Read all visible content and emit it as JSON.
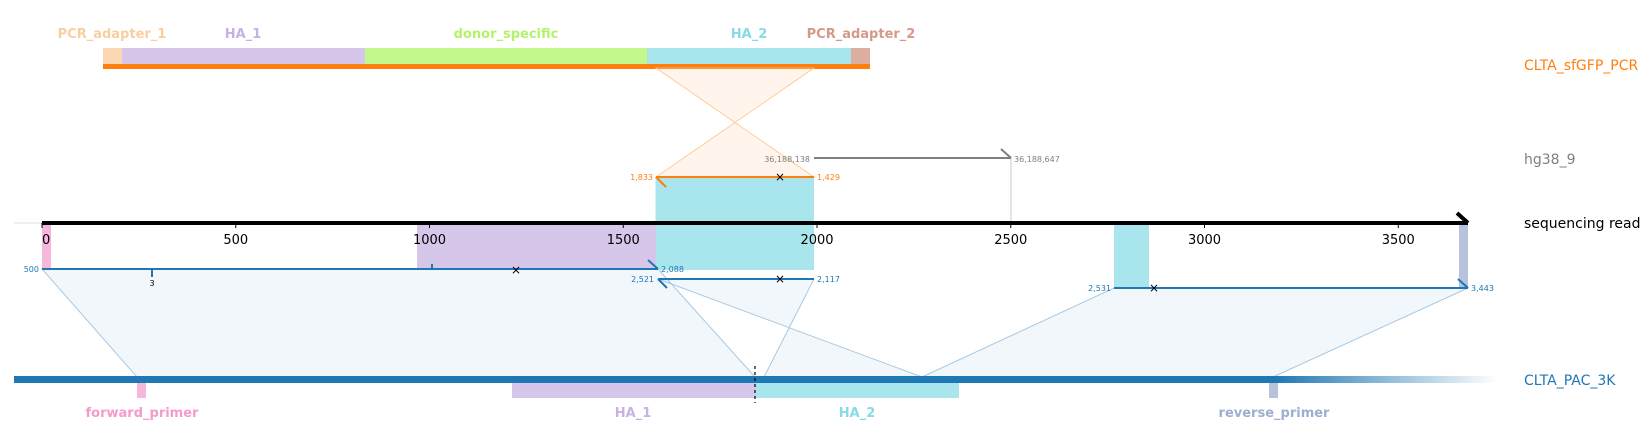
{
  "colors": {
    "pcr_adapter_1": "#fbd7b4",
    "ha_1": "#d6c6ea",
    "donor_specific": "#c3f98a",
    "ha_2": "#a9e5ec",
    "pcr_adapter_2": "#dcaea0",
    "forward_primer": "#f7b7db",
    "reverse_primer": "#b7c2dd",
    "orange": "#ff7f0e",
    "blue": "#1f77b4",
    "gray": "#7f7f7f",
    "black": "#000000"
  },
  "tracks": {
    "pcr": "CLTA_sfGFP_PCR",
    "genome": "hg38_9",
    "read": "sequencing read",
    "pac": "CLTA_PAC_3K"
  },
  "pcr_features": [
    {
      "name": "PCR_adapter_1",
      "color": "#fbd7b4",
      "label_color": "#f9cf9f"
    },
    {
      "name": "HA_1",
      "color": "#d6c6ea",
      "label_color": "#c8b2e4"
    },
    {
      "name": "donor_specific",
      "color": "#c3f98a",
      "label_color": "#b5f26b"
    },
    {
      "name": "HA_2",
      "color": "#a9e5ec",
      "label_color": "#86dbe6"
    },
    {
      "name": "PCR_adapter_2",
      "color": "#dcaea0",
      "label_color": "#d59a87"
    }
  ],
  "pac_features": [
    {
      "name": "forward_primer",
      "color": "#f7b7db",
      "label_color": "#f59bcc"
    },
    {
      "name": "HA_1",
      "color": "#d6c6ea",
      "label_color": "#c8b2e4"
    },
    {
      "name": "HA_2",
      "color": "#a9e5ec",
      "label_color": "#86dbe6"
    },
    {
      "name": "reverse_primer",
      "color": "#b7c2dd",
      "label_color": "#9eaed1"
    }
  ],
  "read_axis": {
    "ticks": [
      0,
      500,
      1000,
      1500,
      2000,
      2500,
      3000,
      3500
    ],
    "tick_labels": [
      "0",
      "500",
      "1000",
      "1500",
      "2000",
      "2500",
      "3000",
      "3500"
    ],
    "length": 3680
  },
  "read_features": [
    {
      "name": "forward_primer",
      "start": 0,
      "end": 25,
      "color": "#f7b7db"
    },
    {
      "name": "HA_1",
      "start": 968,
      "end": 1590,
      "color": "#d6c6ea"
    },
    {
      "name": "HA_2",
      "start": 1590,
      "end": 1993,
      "color": "#a9e5ec"
    },
    {
      "name": "HA_2",
      "start": 2775,
      "end": 2865,
      "color": "#a9e5ec"
    },
    {
      "name": "reverse_primer",
      "start": 3655,
      "end": 3680,
      "color": "#b7c2dd"
    }
  ],
  "alignments": [
    {
      "target": "CLTA_sfGFP_PCR",
      "query_start": 1590,
      "query_end": 1993,
      "target_start_label": "1,833",
      "target_end_label": "1,429",
      "strand": "-"
    },
    {
      "target": "hg38_9",
      "query_start": 1993,
      "query_end": 2500,
      "target_start_label": "36,188,138",
      "target_end_label": "36,188,647",
      "strand": "+"
    },
    {
      "target": "CLTA_PAC_3K",
      "query_start": 0,
      "query_end": 1590,
      "target_start_label": "500",
      "target_end_label": "2,088",
      "strand": "+",
      "indel_label": "3"
    },
    {
      "target": "CLTA_PAC_3K",
      "query_start": 1590,
      "query_end": 1993,
      "target_start_label": "2,521",
      "target_end_label": "2,117",
      "strand": "-"
    },
    {
      "target": "CLTA_PAC_3K",
      "query_start": 2775,
      "query_end": 3680,
      "target_start_label": "2,531",
      "target_end_label": "3,443",
      "strand": "+"
    }
  ]
}
